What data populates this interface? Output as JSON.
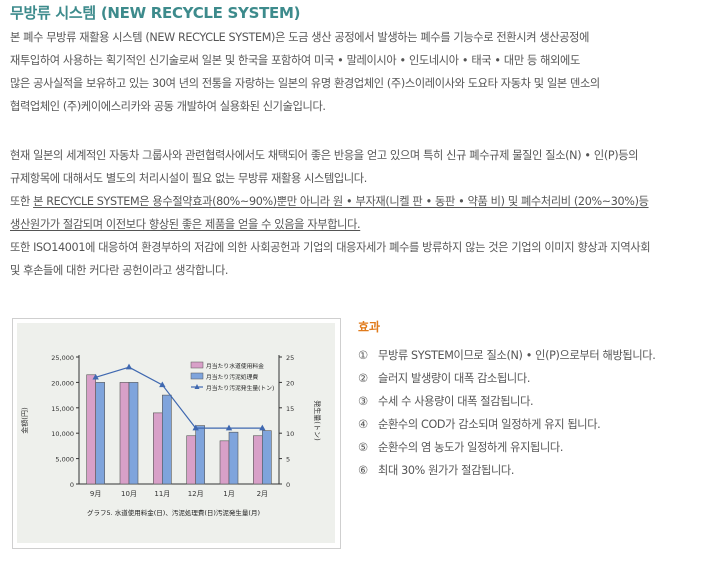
{
  "title": "무방류 시스템 (NEW RECYCLE SYSTEM)",
  "paragraph1": [
    "본 폐수 무방류 재활용 시스템 (NEW RECYCLE SYSTEM)은 도금 생산 공정에서 발생하는 폐수를 기능수로 전환시켜 생산공정에",
    "재투입하여 사용하는 획기적인 신기술로써 일본 및 한국을 포함하여 미국 • 말레이시아 • 인도네시아 • 태국 • 대만 등 해외에도",
    "많은 공사실적을 보유하고 있는 30여 년의 전통을 자랑하는 일본의 유명 환경업체인 (주)스이레이사와 도요타 자동차 및 일본 덴소의",
    "협력업체인 (주)케이에스리카와 공동 개발하여 실용화된 신기술입니다."
  ],
  "paragraph2": [
    "현재 일본의 세계적인 자동차 그룹사와 관련협력사에서도 채택되어 좋은 반응을 얻고 있으며 특히 신규 폐수규제 물질인 질소(N) • 인(P)등의",
    "규제항목에 대해서도 별도의 처리시설이 필요 없는 무방류 재활용 시스템입니다."
  ],
  "paragraph3": {
    "prefix": "또한 ",
    "underlined1": "본 RECYCLE SYSTEM은 용수절약효과(80%~90%)뿐만 아니라 원 • 부자재(니켈 판 • 동판 •  약품 비) 및 폐수처리비 (20%~30%)등",
    "underlined2": "생산원가가 절감되며 이전보다 향상된 좋은 제품을 얻을 수 있음을 자부합니다."
  },
  "paragraph4": [
    "또한 ISO14001에 대응하여 환경부하의 저감에 의한 사회공헌과 기업의 대응자세가 폐수를 방류하지 않는 것은 기업의 이미지 향상과 지역사회",
    "및 후손들에 대한 커다란 공헌이라고 생각합니다."
  ],
  "effects": {
    "title": "효과",
    "items": [
      {
        "num": "①",
        "text": "무방류 SYSTEM이므로 질소(N)  •  인(P)으로부터 해방됩니다."
      },
      {
        "num": "②",
        "text": "슬러지 발생량이 대폭 감소됩니다."
      },
      {
        "num": "③",
        "text": "수세 수 사용량이 대폭 절감됩니다."
      },
      {
        "num": "④",
        "text": "순환수의 COD가 감소되며 일정하게 유지 됩니다."
      },
      {
        "num": "⑤",
        "text": "순환수의 염 농도가 일정하게 유지됩니다."
      },
      {
        "num": "⑥",
        "text": "최대 30% 원가가 절감됩니다."
      }
    ]
  },
  "chart_data": {
    "type": "bar",
    "categories": [
      "9月",
      "10月",
      "11月",
      "12月",
      "1月",
      "2月"
    ],
    "series": [
      {
        "name": "月当たり水道使用料金",
        "type": "bar",
        "axis": "left",
        "color": "#d8a0c8",
        "values": [
          21500,
          20000,
          14000,
          9500,
          8500,
          9500
        ]
      },
      {
        "name": "月当たり汚泥処理費",
        "type": "bar",
        "axis": "left",
        "color": "#7fa4dc",
        "values": [
          20000,
          20000,
          17500,
          11500,
          10200,
          10500
        ]
      },
      {
        "name": "月当たり汚泥発生量(トン)",
        "type": "line",
        "axis": "right",
        "color": "#3f68b0",
        "values": [
          21,
          23,
          19.5,
          11,
          11,
          11
        ]
      }
    ],
    "ylim": [
      0,
      25000
    ],
    "yticks": [
      "25,000",
      "20,000",
      "15,000",
      "10,000",
      "5,000",
      "0"
    ],
    "ylabel": "金額(円)",
    "y2lim": [
      0,
      25
    ],
    "y2ticks": [
      "25",
      "20",
      "15",
      "10",
      "5",
      "0"
    ],
    "y2label": "発生量(トン)",
    "caption": "グラフ5. 水道使用料金(日)、汚泥処理費(日)汚泥発生量(月)",
    "grid": false,
    "legend_position": "top-right"
  }
}
